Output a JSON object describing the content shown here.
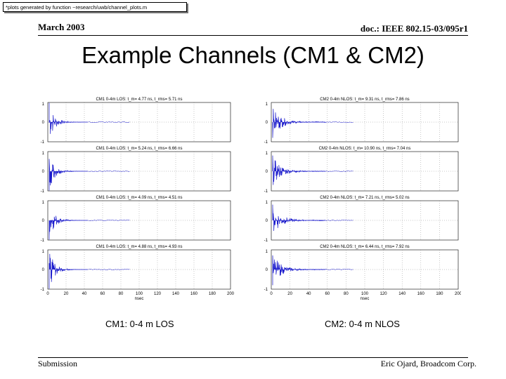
{
  "note": "*plots generated by function ~research/uwb/channel_plots.m",
  "header": {
    "date": "March 2003",
    "doc": "doc.: IEEE 802.15-03/095r1"
  },
  "title": "Example Channels (CM1 & CM2)",
  "captions": {
    "left": "CM1: 0-4 m LOS",
    "right": "CM2: 0-4 m NLOS"
  },
  "footer": {
    "left": "Submission",
    "right": "Eric Ojard, Broadcom Corp."
  },
  "plots": {
    "left": [
      "CM1 0-4m LOS: t_m= 4.77 ns, t_rms= 5.71 ns",
      "CM1 0-4m LOS: t_m= 5.24 ns, t_rms= 6.66 ns",
      "CM1 0-4m LOS: t_m= 4.09 ns, t_rms= 4.51 ns",
      "CM1 0-4m LOS: t_m= 4.88 ns, t_rms= 4.93 ns"
    ],
    "right": [
      "CM2 0-4m NLOS: t_m= 9.31 ns, t_rms= 7.86 ns",
      "CM2 0-4m NLOS: t_m= 10.90 ns, t_rms= 7.04 ns",
      "CM2 0-4m NLOS: t_m= 7.21 ns, t_rms= 5.02 ns",
      "CM2 0-4m NLOS: t_m= 6.44 ns, t_rms= 7.92 ns"
    ],
    "yticks": [
      "1",
      "0",
      "-1"
    ],
    "xticks": [
      "0",
      "20",
      "40",
      "60",
      "80",
      "100",
      "120",
      "140",
      "160",
      "180",
      "200"
    ],
    "xlabel": "nsec",
    "line_color": "#1a1acc"
  }
}
